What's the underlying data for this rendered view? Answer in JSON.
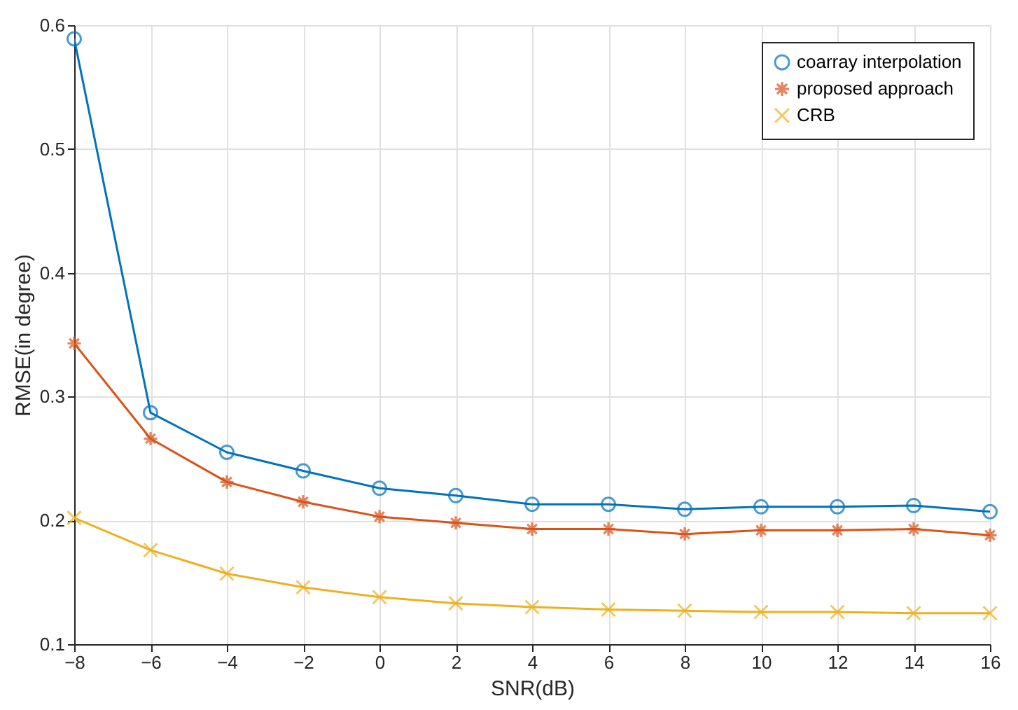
{
  "chart_data": {
    "type": "line",
    "xlabel": "SNR(dB)",
    "ylabel": "RMSE(in degree)",
    "x": [
      -8,
      -6,
      -4,
      -2,
      0,
      2,
      4,
      6,
      8,
      10,
      12,
      14,
      16
    ],
    "xlim": [
      -8,
      16
    ],
    "xticks": [
      -8,
      -6,
      -4,
      -2,
      0,
      2,
      4,
      6,
      8,
      10,
      12,
      14,
      16
    ],
    "ylim": [
      0.1,
      0.6
    ],
    "yticks": [
      0.1,
      0.2,
      0.3,
      0.4,
      0.5,
      0.6
    ],
    "grid": true,
    "legend": "top right",
    "line_style": "solid",
    "series": [
      {
        "name": "coarray interpolation",
        "color": "#0072bd",
        "marker": "circle",
        "values": [
          0.589,
          0.287,
          0.255,
          0.24,
          0.226,
          0.22,
          0.213,
          0.213,
          0.209,
          0.211,
          0.211,
          0.212,
          0.207
        ]
      },
      {
        "name": "proposed approach",
        "color": "#d95319",
        "marker": "star",
        "values": [
          0.343,
          0.266,
          0.231,
          0.215,
          0.203,
          0.198,
          0.193,
          0.193,
          0.189,
          0.192,
          0.192,
          0.193,
          0.188
        ]
      },
      {
        "name": "CRB",
        "color": "#edb120",
        "marker": "cross",
        "values": [
          0.202,
          0.176,
          0.157,
          0.146,
          0.138,
          0.133,
          0.13,
          0.128,
          0.127,
          0.126,
          0.126,
          0.125,
          0.125
        ]
      }
    ]
  }
}
